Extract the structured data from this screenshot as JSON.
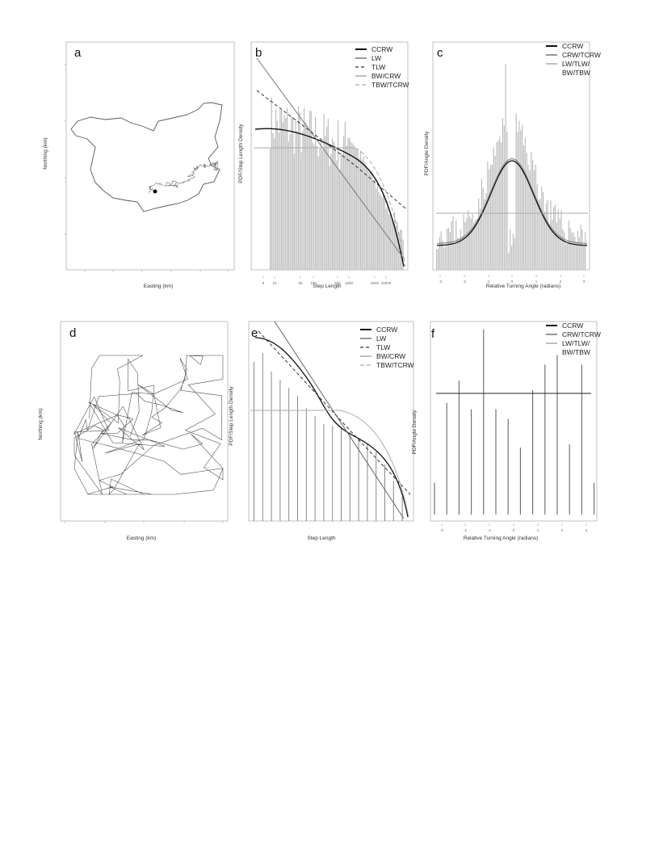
{
  "figure": {
    "panels": {
      "a": {
        "letter": "a",
        "xlabel": "Easting (km)",
        "ylabel": "Northing (km)"
      },
      "b": {
        "letter": "b",
        "xlabel": "Step Length",
        "ylabel": "PDF/Step Length Density",
        "legend": [
          "CCRW",
          "LW",
          "TLW",
          "BW/CRW",
          "TBW/TCRW"
        ],
        "xticks": [
          "5",
          "10",
          "50",
          "100",
          "500",
          "1000",
          "5000",
          "10000"
        ]
      },
      "c": {
        "letter": "c",
        "xlabel": "Relative Turning Angle (radians)",
        "ylabel": "PDF/Angle Density",
        "legend": [
          "CCRW",
          "CRW/TCRW",
          "LW/TLW/",
          "BW/TBW"
        ],
        "xticks": [
          "-3",
          "-2",
          "-1",
          "0",
          "1",
          "2",
          "3"
        ]
      },
      "d": {
        "letter": "d",
        "xlabel": "Easting (km)",
        "ylabel": "Northing (km)"
      },
      "e": {
        "letter": "e",
        "xlabel": "Step Length",
        "ylabel": "PDF/Step Length Density",
        "legend": [
          "CCRW",
          "LW",
          "TLW",
          "BW/CRW",
          "TBW/TCRW"
        ]
      },
      "f": {
        "letter": "f",
        "xlabel": "Relative Turning Angle (radians)",
        "ylabel": "PDF/Angle Density",
        "legend": [
          "CCRW",
          "CRW/TCRW",
          "LW/TLW/",
          "BW/TBW"
        ],
        "xticks": [
          "-3",
          "-2",
          "-1",
          "0",
          "1",
          "2",
          "3"
        ]
      }
    }
  },
  "chart_data": [
    {
      "panel": "a",
      "type": "line",
      "title": "",
      "xlabel": "Easting (km)",
      "ylabel": "Northing (km)"
    },
    {
      "panel": "b",
      "type": "bar",
      "xlabel": "Step Length",
      "ylabel": "PDF/Step Length Density",
      "xscale": "log",
      "yscale": "log",
      "series": [
        {
          "name": "CCRW"
        },
        {
          "name": "LW"
        },
        {
          "name": "TLW"
        },
        {
          "name": "BW/CRW"
        },
        {
          "name": "TBW/TCRW"
        }
      ]
    },
    {
      "panel": "c",
      "type": "bar",
      "xlabel": "Relative Turning Angle (radians)",
      "ylabel": "PDF/Angle Density",
      "xlim": [
        -3.14,
        3.14
      ],
      "series": [
        {
          "name": "CCRW"
        },
        {
          "name": "CRW/TCRW"
        },
        {
          "name": "LW/TLW/BW/TBW"
        }
      ]
    },
    {
      "panel": "d",
      "type": "line",
      "xlabel": "Easting (km)",
      "ylabel": "Northing (km)"
    },
    {
      "panel": "e",
      "type": "bar",
      "xlabel": "Step Length",
      "ylabel": "PDF/Step Length Density",
      "xscale": "log",
      "yscale": "log",
      "series": [
        {
          "name": "CCRW"
        },
        {
          "name": "LW"
        },
        {
          "name": "TLW"
        },
        {
          "name": "BW/CRW"
        },
        {
          "name": "TBW/TCRW"
        }
      ]
    },
    {
      "panel": "f",
      "type": "bar",
      "xlabel": "Relative Turning Angle (radians)",
      "ylabel": "PDF/Angle Density",
      "xlim": [
        -3.14,
        3.14
      ],
      "values": [
        0.1,
        0.35,
        0.42,
        0.33,
        0.58,
        0.33,
        0.3,
        0.21,
        0.39,
        0.47,
        0.5,
        0.22,
        0.47,
        0.1
      ],
      "series": [
        {
          "name": "CCRW"
        },
        {
          "name": "CRW/TCRW"
        },
        {
          "name": "LW/TLW/BW/TBW"
        }
      ]
    }
  ]
}
